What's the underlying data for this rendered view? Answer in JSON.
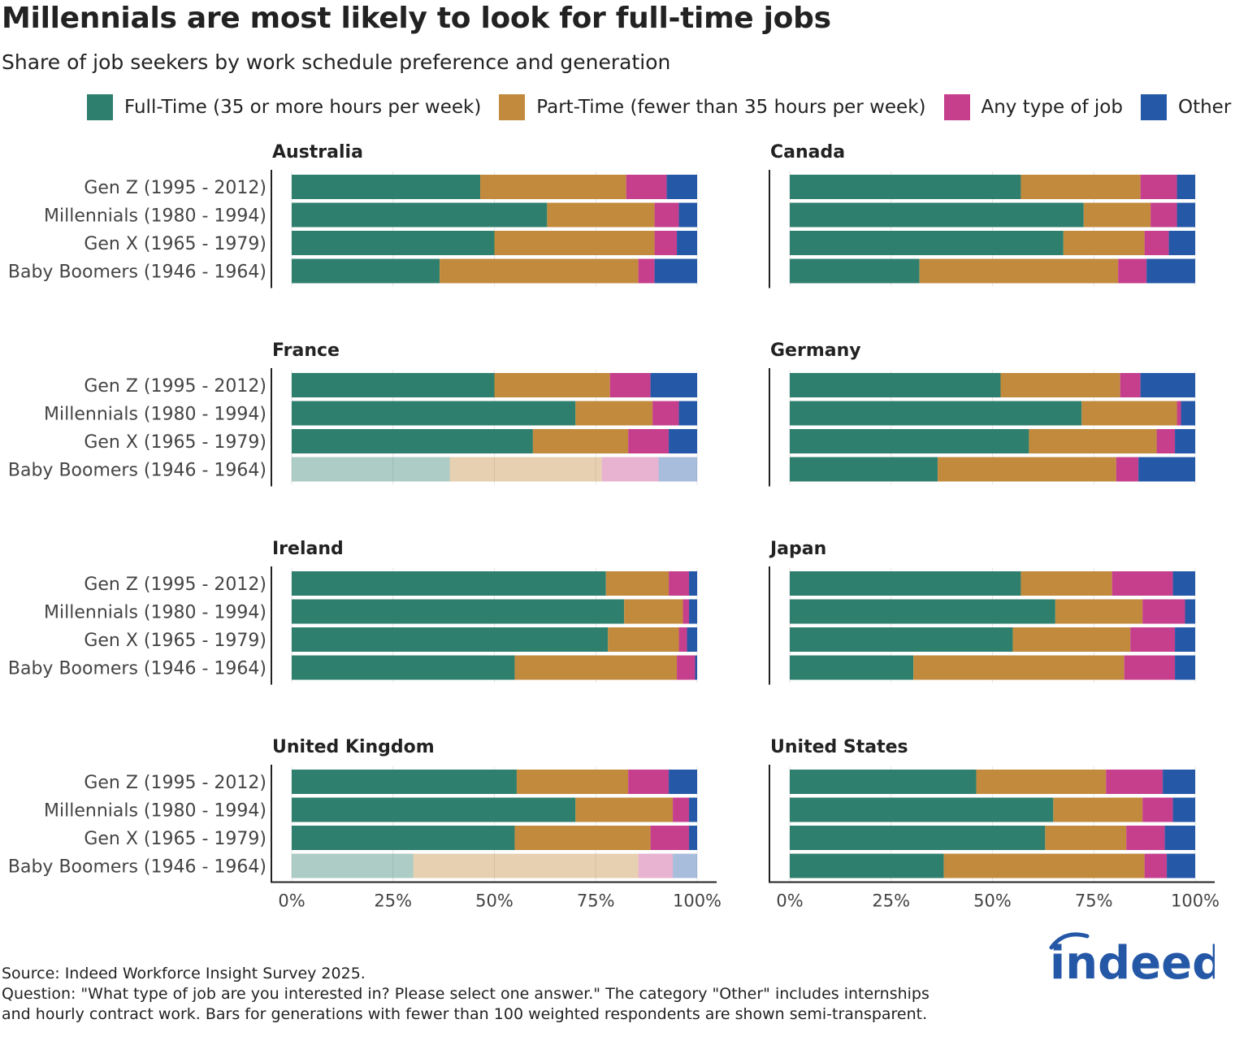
{
  "title": "Millennials are most likely to look for full-time jobs",
  "subtitle": "Share of job seekers by work schedule preference and generation",
  "legend": [
    {
      "label": "Full-Time (35 or more hours per week)",
      "color": "#2f7f6e"
    },
    {
      "label": "Part-Time (fewer than 35 hours per week)",
      "color": "#c28a3c"
    },
    {
      "label": "Any type of job",
      "color": "#c63f8c"
    },
    {
      "label": "Other",
      "color": "#2559a8"
    }
  ],
  "notes": {
    "source": "Source: Indeed Workforce Insight Survey 2025.",
    "question_line1": "Question: \"What type of job are you interested in? Please select one answer.\" The category \"Other\" includes internships",
    "question_line2": "and hourly contract work. Bars for generations with fewer than 100 weighted respondents are shown semi-transparent."
  },
  "logo_text": "indeed",
  "chart_data": {
    "type": "bar",
    "orientation": "horizontal",
    "stacked": true,
    "percent_axis_ticks": [
      "0%",
      "25%",
      "50%",
      "75%",
      "100%"
    ],
    "xlim": [
      0,
      100
    ],
    "categories": [
      "Gen Z (1995 - 2012)",
      "Millennials (1980 - 1994)",
      "Gen X (1965 - 1979)",
      "Baby Boomers (1946 - 1964)"
    ],
    "series_names": [
      "Full-Time (35 or more hours per week)",
      "Part-Time (fewer than 35 hours per week)",
      "Any type of job",
      "Other"
    ],
    "panels": [
      {
        "title": "Australia",
        "rows": [
          [
            46.5,
            36,
            10,
            7.5
          ],
          [
            63,
            26.5,
            6,
            4.5
          ],
          [
            50,
            39.5,
            5.5,
            5
          ],
          [
            36.5,
            49,
            4,
            10.5
          ]
        ],
        "semi_transparent": [
          false,
          false,
          false,
          false
        ]
      },
      {
        "title": "Canada",
        "rows": [
          [
            57,
            29.5,
            9,
            4.5
          ],
          [
            72.5,
            16.5,
            6.5,
            4.5
          ],
          [
            67.5,
            20,
            6,
            6.5
          ],
          [
            32,
            49,
            7,
            12
          ]
        ],
        "semi_transparent": [
          false,
          false,
          false,
          false
        ]
      },
      {
        "title": "France",
        "rows": [
          [
            50,
            28.5,
            10,
            11.5
          ],
          [
            70,
            19,
            6.5,
            4.5
          ],
          [
            59.5,
            23.5,
            10,
            7
          ],
          [
            39,
            37.5,
            14,
            9.5
          ]
        ],
        "semi_transparent": [
          false,
          false,
          false,
          true
        ]
      },
      {
        "title": "Germany",
        "rows": [
          [
            52,
            29.5,
            5,
            13.5
          ],
          [
            72,
            23.5,
            1,
            3.5
          ],
          [
            59,
            31.5,
            4.5,
            5
          ],
          [
            36.5,
            44,
            5.5,
            14
          ]
        ],
        "semi_transparent": [
          false,
          false,
          false,
          false
        ]
      },
      {
        "title": "Ireland",
        "rows": [
          [
            77.5,
            15.5,
            5,
            2
          ],
          [
            82,
            14.5,
            1.5,
            2
          ],
          [
            78,
            17.5,
            2,
            2.5
          ],
          [
            55,
            40,
            4.5,
            0.5
          ]
        ],
        "semi_transparent": [
          false,
          false,
          false,
          false
        ]
      },
      {
        "title": "Japan",
        "rows": [
          [
            57,
            22.5,
            15,
            5.5
          ],
          [
            65.5,
            21.5,
            10.5,
            2.5
          ],
          [
            55,
            29,
            11,
            5
          ],
          [
            30.5,
            52,
            12.5,
            5
          ]
        ],
        "semi_transparent": [
          false,
          false,
          false,
          false
        ]
      },
      {
        "title": "United Kingdom",
        "rows": [
          [
            55.5,
            27.5,
            10,
            7
          ],
          [
            70,
            24,
            4,
            2
          ],
          [
            55,
            33.5,
            9.5,
            2
          ],
          [
            30,
            55.5,
            8.5,
            6
          ]
        ],
        "semi_transparent": [
          false,
          false,
          false,
          true
        ]
      },
      {
        "title": "United States",
        "rows": [
          [
            46,
            32,
            14,
            8
          ],
          [
            65,
            22,
            7.5,
            5.5
          ],
          [
            63,
            20,
            9.5,
            7.5
          ],
          [
            38,
            49.5,
            5.5,
            7
          ]
        ],
        "semi_transparent": [
          false,
          false,
          false,
          false
        ]
      }
    ]
  }
}
